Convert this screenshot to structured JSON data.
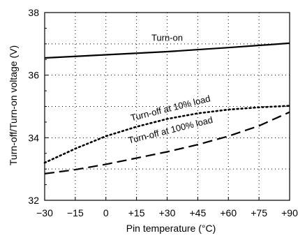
{
  "chart_data": {
    "type": "line",
    "title": "",
    "xlabel": "Pin temperature (°C)",
    "ylabel": "Turn-off/Turn-on voltage (V)",
    "xlim": [
      -30,
      90
    ],
    "ylim": [
      32,
      38
    ],
    "x_ticks": [
      -30,
      -15,
      0,
      15,
      30,
      45,
      60,
      75,
      90
    ],
    "x_tick_labels": [
      "−30",
      "−15",
      "0",
      "+15",
      "+30",
      "+45",
      "+60",
      "+75",
      "+90"
    ],
    "y_ticks": [
      32,
      34,
      36,
      38
    ],
    "y_tick_labels": [
      "32",
      "34",
      "36",
      "38"
    ],
    "grid": true,
    "series": [
      {
        "name": "Turn-on",
        "style": "solid",
        "points": [
          [
            -30,
            36.55
          ],
          [
            0,
            36.65
          ],
          [
            30,
            36.75
          ],
          [
            60,
            36.88
          ],
          [
            90,
            37.02
          ]
        ]
      },
      {
        "name": "Turn-off at 10% load",
        "style": "dotted",
        "points": [
          [
            -30,
            33.2
          ],
          [
            -15,
            33.65
          ],
          [
            0,
            34.05
          ],
          [
            15,
            34.35
          ],
          [
            30,
            34.6
          ],
          [
            45,
            34.78
          ],
          [
            60,
            34.9
          ],
          [
            75,
            34.97
          ],
          [
            90,
            35.02
          ]
        ]
      },
      {
        "name": "Turn-off at 100% load",
        "style": "dashed",
        "points": [
          [
            -30,
            32.85
          ],
          [
            -15,
            32.98
          ],
          [
            0,
            33.15
          ],
          [
            15,
            33.35
          ],
          [
            30,
            33.55
          ],
          [
            45,
            33.78
          ],
          [
            60,
            34.05
          ],
          [
            75,
            34.38
          ],
          [
            90,
            34.82
          ]
        ]
      }
    ]
  }
}
